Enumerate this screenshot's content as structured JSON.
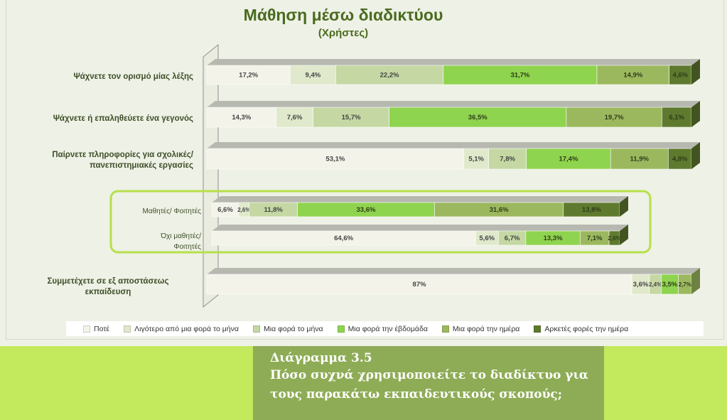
{
  "chart_data": {
    "type": "stacked-bar-horizontal-100",
    "title": "Μάθηση μέσω διαδικτύου",
    "subtitle": "(Χρήστες)",
    "legend_position": "bottom",
    "series": [
      {
        "name": "Ποτέ",
        "color": "#f3f3ea"
      },
      {
        "name": "Λιγότερο από μια φορά το μήνα",
        "color": "#e0e9cb"
      },
      {
        "name": "Μια φορά το μήνα",
        "color": "#c5d8a4"
      },
      {
        "name": "Μια φορά την έβδομάδα",
        "color": "#8fd44e"
      },
      {
        "name": "Μια φορά την ημέρα",
        "color": "#9cb85e"
      },
      {
        "name": "Αρκετές φορές την ημέρα",
        "color": "#5e7a2e"
      }
    ],
    "categories": [
      {
        "label": "Ψάχνετε τον ορισμό μίας λέξης",
        "values": [
          17.2,
          9.4,
          22.2,
          31.7,
          14.9,
          4.6
        ],
        "labels": [
          "17,2%",
          "9,4%",
          "22,2%",
          "31,7%",
          "14,9%",
          "4,6%"
        ]
      },
      {
        "label": "Ψάχνετε ή επαληθεύετε ένα γεγονός",
        "values": [
          14.3,
          7.6,
          15.7,
          36.5,
          19.7,
          6.1
        ],
        "labels": [
          "14,3%",
          "7,6%",
          "15,7%",
          "36,5%",
          "19,7%",
          "6,1%"
        ]
      },
      {
        "label": "Παίρνετε πληροφορίες για σχολικές/ πανεπιστημιακές εργασίες",
        "values": [
          53.1,
          5.1,
          7.8,
          17.4,
          11.9,
          4.8
        ],
        "labels": [
          "53,1%",
          "5,1%",
          "7,8%",
          "17,4%",
          "11,9%",
          "4,8%"
        ]
      },
      {
        "label": "Μαθητές/ Φοιτητές",
        "values": [
          6.6,
          2.6,
          11.8,
          33.6,
          31.6,
          13.8
        ],
        "labels": [
          "6,6%",
          "2,6%",
          "11,8%",
          "33,6%",
          "31,6%",
          "13,8%"
        ]
      },
      {
        "label": "Όχι μαθητές/ Φοιτητές",
        "values": [
          64.6,
          5.6,
          6.7,
          13.3,
          7.1,
          2.6
        ],
        "labels": [
          "64,6%",
          "5,6%",
          "6,7%",
          "13,3%",
          "7,1%",
          "2,6%"
        ]
      },
      {
        "label": "Συμμετέχετε σε εξ αποστάσεως εκπαίδευση",
        "values": [
          87,
          3.6,
          2.4,
          3.5,
          2.7,
          0
        ],
        "labels": [
          "87%",
          "3,6%",
          "2,4%",
          "3,5%",
          "2,7%",
          ""
        ]
      }
    ]
  },
  "caption": {
    "number": "Διάγραμμα 3.5",
    "text": "Πόσο συχνά χρησιμοποιείτε το διαδίκτυο για τους παρακάτω εκπαιδευτικούς σκοπούς;"
  }
}
